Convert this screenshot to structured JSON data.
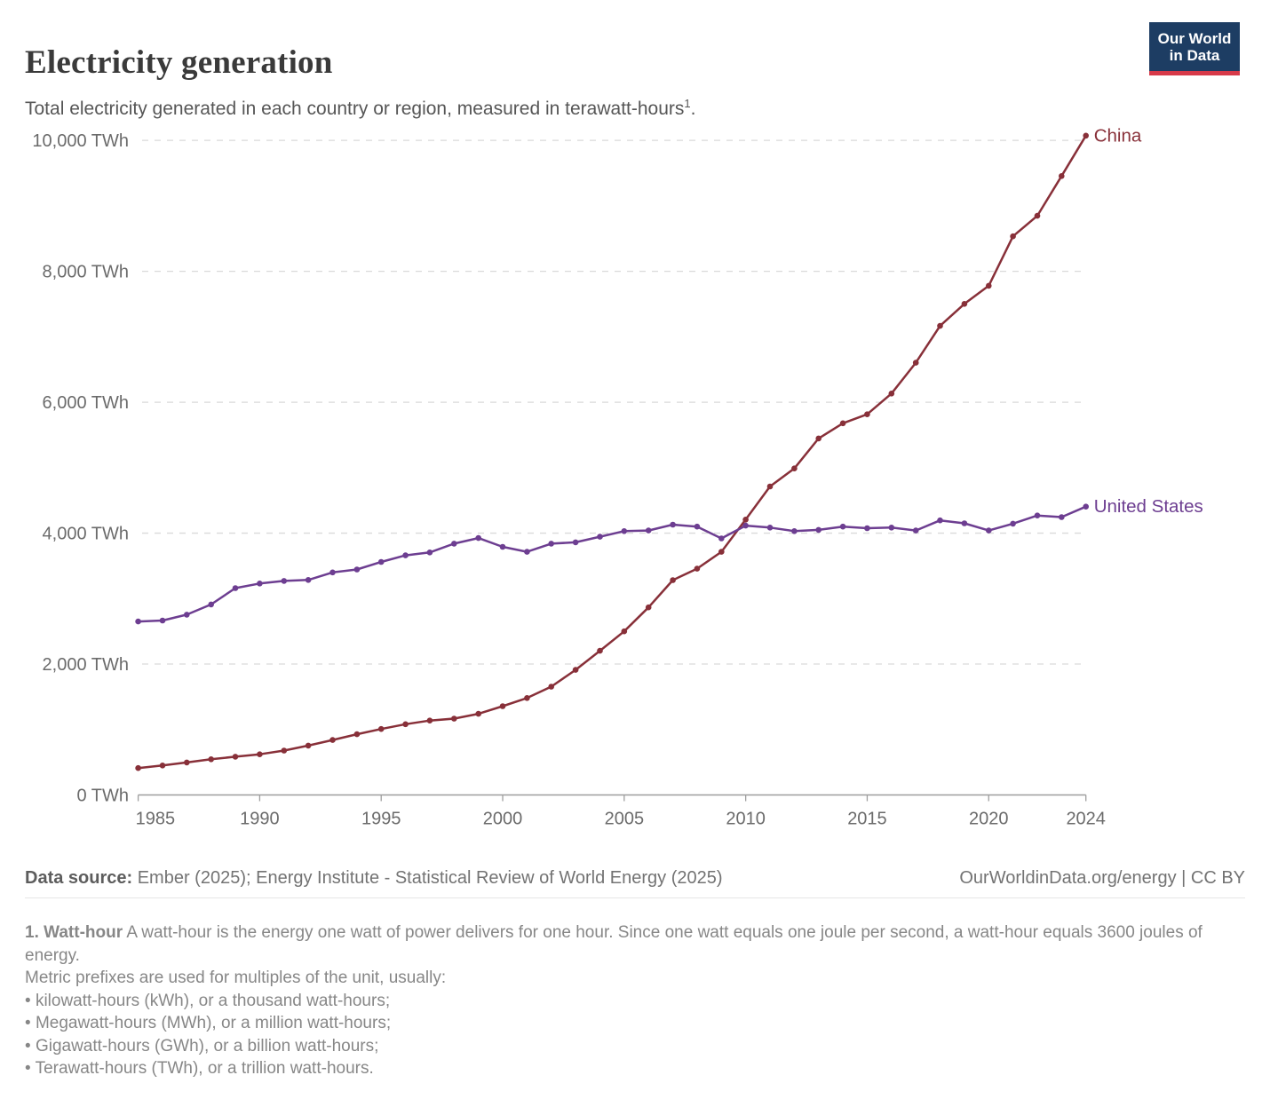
{
  "header": {
    "title": "Electricity generation",
    "subtitle": "Total electricity generated in each country or region, measured in terawatt-hours",
    "subtitle_sup": "1",
    "subtitle_end": ".",
    "logo_line1": "Our World",
    "logo_line2": "in Data"
  },
  "chart_data": {
    "type": "line",
    "title": "Electricity generation",
    "unit": "TWh",
    "grid": "dashed-horizontal",
    "legend_position": "line-end-labels",
    "xlim": [
      1985,
      2024
    ],
    "ylim": [
      0,
      10000
    ],
    "xticks": [
      1985,
      1990,
      1995,
      2000,
      2005,
      2010,
      2015,
      2020,
      2024
    ],
    "yticks": [
      0,
      2000,
      4000,
      6000,
      8000,
      10000
    ],
    "ytick_labels": [
      "0 TWh",
      "2,000 TWh",
      "4,000 TWh",
      "6,000 TWh",
      "8,000 TWh",
      "10,000 TWh"
    ],
    "x": [
      1985,
      1986,
      1987,
      1988,
      1989,
      1990,
      1991,
      1992,
      1993,
      1994,
      1995,
      1996,
      1997,
      1998,
      1999,
      2000,
      2001,
      2002,
      2003,
      2004,
      2005,
      2006,
      2007,
      2008,
      2009,
      2010,
      2011,
      2012,
      2013,
      2014,
      2015,
      2016,
      2017,
      2018,
      2019,
      2020,
      2021,
      2022,
      2023,
      2024
    ],
    "series": [
      {
        "name": "China",
        "color": "#883039",
        "values": [
          411,
          450,
          497,
          545,
          585,
          621,
          678,
          754,
          839,
          928,
          1007,
          1081,
          1136,
          1167,
          1239,
          1356,
          1481,
          1654,
          1911,
          2203,
          2500,
          2866,
          3282,
          3457,
          3714,
          4207,
          4713,
          4988,
          5447,
          5678,
          5815,
          6133,
          6604,
          7166,
          7503,
          7779,
          8534,
          8848,
          9456,
          10073
        ]
      },
      {
        "name": "United States",
        "color": "#6d3e91",
        "values": [
          2650,
          2665,
          2755,
          2910,
          3160,
          3230,
          3270,
          3285,
          3400,
          3445,
          3560,
          3660,
          3705,
          3840,
          3925,
          3790,
          3715,
          3840,
          3860,
          3945,
          4030,
          4040,
          4130,
          4100,
          3920,
          4115,
          4085,
          4030,
          4050,
          4100,
          4075,
          4085,
          4040,
          4195,
          4150,
          4040,
          4145,
          4270,
          4245,
          4405
        ]
      }
    ]
  },
  "footer": {
    "datasource_label": "Data source:",
    "datasource_text": " Ember (2025); Energy Institute - Statistical Review of World Energy (2025)",
    "link_text": "OurWorldinData.org/energy | CC BY"
  },
  "footnote": {
    "term": "1. Watt-hour",
    "definition": " A watt-hour is the energy one watt of power delivers for one hour. Since one watt equals one joule per second, a watt-hour equals 3600 joules of energy.",
    "intro": "Metric prefixes are used for multiples of the unit, usually:",
    "bullets": [
      "kilowatt-hours (kWh), or a thousand watt-hours;",
      "Megawatt-hours (MWh), or a million watt-hours;",
      "Gigawatt-hours (GWh), or a billion watt-hours;",
      "Terawatt-hours (TWh), or a trillion watt-hours."
    ]
  },
  "colors": {
    "china_line": "#883039",
    "us_line": "#6d3e91",
    "logo_bg": "#1d3d63",
    "logo_stripe": "#d73a49",
    "gridline": "#dadada",
    "axis": "#9e9e9e"
  }
}
